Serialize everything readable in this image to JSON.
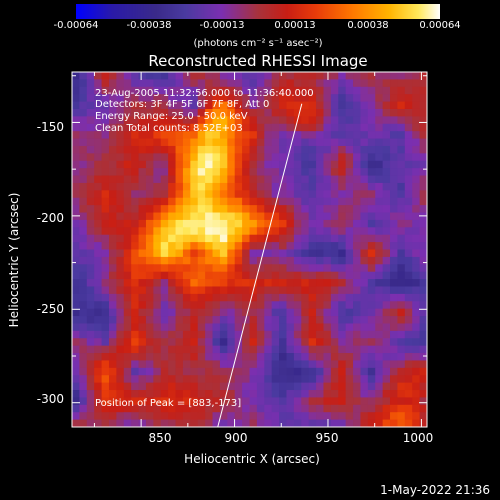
{
  "colorbar": {
    "ticks": [
      "-0.00064",
      "-0.00038",
      "-0.00013",
      "0.00013",
      "0.00038",
      "0.00064"
    ],
    "unit": "(photons cm⁻² s⁻¹ asec⁻²)"
  },
  "chart_data": {
    "type": "heatmap",
    "title": "Reconstructed RHESSI Image",
    "xlabel": "Heliocentric X (arcsec)",
    "ylabel": "Heliocentric Y (arcsec)",
    "xlim": [
      813,
      1003
    ],
    "ylim": [
      -313,
      -123
    ],
    "x_ticks": [
      850,
      900,
      950,
      1000
    ],
    "y_ticks": [
      -150,
      -200,
      -250,
      -300
    ],
    "colorscale_range": [
      -0.00064,
      0.00064
    ],
    "peak": [
      883,
      -173
    ],
    "limb_line": {
      "x": [
        891,
        936
      ],
      "y": [
        -313,
        -140
      ]
    },
    "annotations": {
      "time": "23-Aug-2005 11:32:56.000 to 11:36:40.000",
      "detectors": "Detectors: 3F 4F 5F 6F 7F 8F, Att 0",
      "energy": "Energy Range: 25.0 - 50.0 keV",
      "clean": "Clean     Total counts: 8.52E+03",
      "peak": "Position of Peak = [883,-173]"
    }
  },
  "footer": {
    "timestamp": "1-May-2022 21:36"
  }
}
